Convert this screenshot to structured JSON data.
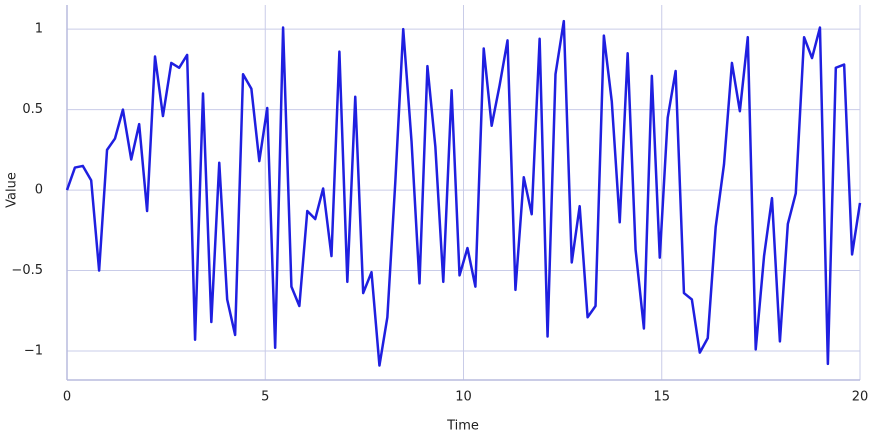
{
  "chart_data": {
    "type": "line",
    "xlabel": "Time",
    "ylabel": "Value",
    "x": [
      0,
      0.2,
      0.4,
      0.61,
      0.81,
      1.01,
      1.21,
      1.41,
      1.62,
      1.82,
      2.02,
      2.22,
      2.42,
      2.63,
      2.83,
      3.03,
      3.23,
      3.43,
      3.64,
      3.84,
      4.04,
      4.24,
      4.44,
      4.65,
      4.85,
      5.05,
      5.25,
      5.45,
      5.66,
      5.86,
      6.06,
      6.26,
      6.46,
      6.67,
      6.87,
      7.07,
      7.27,
      7.47,
      7.68,
      7.88,
      8.08,
      8.28,
      8.48,
      8.69,
      8.89,
      9.09,
      9.29,
      9.49,
      9.7,
      9.9,
      10.1,
      10.3,
      10.51,
      10.71,
      10.91,
      11.11,
      11.31,
      11.52,
      11.72,
      11.92,
      12.12,
      12.32,
      12.53,
      12.73,
      12.93,
      13.13,
      13.33,
      13.54,
      13.74,
      13.94,
      14.14,
      14.34,
      14.55,
      14.75,
      14.95,
      15.15,
      15.35,
      15.56,
      15.76,
      15.96,
      16.16,
      16.36,
      16.57,
      16.77,
      16.97,
      17.17,
      17.37,
      17.58,
      17.78,
      17.98,
      18.18,
      18.38,
      18.59,
      18.79,
      18.99,
      19.19,
      19.39,
      19.6,
      19.8,
      20
    ],
    "series": [
      {
        "color": "#1f1fe0",
        "values": [
          0.0,
          0.14,
          0.15,
          0.06,
          -0.5,
          0.25,
          0.32,
          0.5,
          0.19,
          0.41,
          -0.13,
          0.83,
          0.46,
          0.79,
          0.76,
          0.84,
          -0.93,
          0.6,
          -0.82,
          0.17,
          -0.68,
          -0.9,
          0.72,
          0.63,
          0.18,
          0.51,
          -0.98,
          1.01,
          -0.6,
          -0.72,
          -0.13,
          -0.18,
          0.01,
          -0.41,
          0.86,
          -0.57,
          0.58,
          -0.64,
          -0.51,
          -1.09,
          -0.79,
          0.05,
          1.0,
          0.3,
          -0.58,
          0.77,
          0.27,
          -0.57,
          0.62,
          -0.53,
          -0.36,
          -0.6,
          0.88,
          0.4,
          0.65,
          0.93,
          -0.62,
          0.08,
          -0.15,
          0.94,
          -0.91,
          0.72,
          1.05,
          -0.45,
          -0.1,
          -0.79,
          -0.72,
          0.96,
          0.55,
          -0.2,
          0.85,
          -0.37,
          -0.86,
          0.71,
          -0.42,
          0.45,
          0.74,
          -0.64,
          -0.68,
          -1.01,
          -0.92,
          -0.23,
          0.16,
          0.79,
          0.49,
          0.95,
          -0.99,
          -0.41,
          -0.05,
          -0.94,
          -0.21,
          -0.02,
          0.95,
          0.82,
          1.01,
          -1.08,
          0.76,
          0.78,
          -0.4,
          -0.08
        ]
      }
    ],
    "xlim": [
      0,
      20
    ],
    "xticks": [
      0,
      5,
      10,
      15,
      20
    ],
    "ylim": [
      -1.18,
      1.15
    ],
    "yticks": [
      {
        "value": -1,
        "label": "−1"
      },
      {
        "value": -0.5,
        "label": "−0.5"
      },
      0,
      0.5,
      1
    ],
    "grid": true
  }
}
